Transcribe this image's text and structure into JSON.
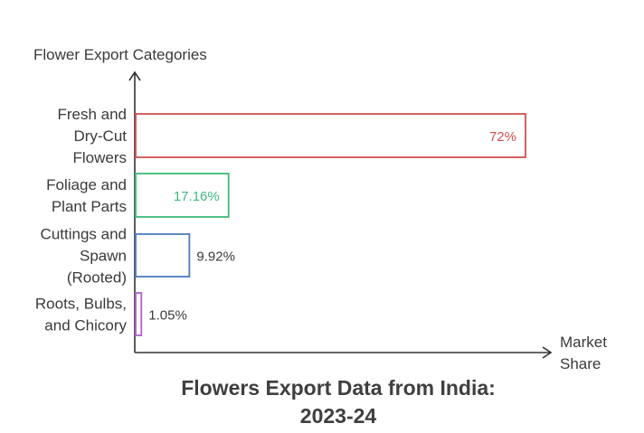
{
  "chart_data": {
    "type": "bar",
    "orientation": "horizontal",
    "title_lines": [
      "Flowers Export Data from India:",
      "2023-24"
    ],
    "ylabel": "Flower Export Categories",
    "xlabel_lines": [
      "Market",
      "Share"
    ],
    "categories": [
      [
        "Fresh and",
        "Dry-Cut",
        "Flowers"
      ],
      [
        "Foliage and",
        "Plant Parts"
      ],
      [
        "Cuttings and",
        "Spawn",
        "(Rooted)"
      ],
      [
        "Roots, Bulbs,",
        "and Chicory"
      ]
    ],
    "values": [
      72,
      17.16,
      9.92,
      1.05
    ],
    "value_labels": [
      "72%",
      "17.16%",
      "9.92%",
      "1.05%"
    ],
    "colors": [
      "#d2504f",
      "#3dba7c",
      "#4a7cc0",
      "#b45fd1"
    ],
    "value_label_colors": [
      "#d2504f",
      "#3dba7c",
      "#3a3a3a",
      "#3a3a3a"
    ],
    "value_label_inside": [
      true,
      true,
      false,
      false
    ],
    "xlim": [
      0,
      100
    ],
    "grid": false,
    "legend": "none"
  }
}
